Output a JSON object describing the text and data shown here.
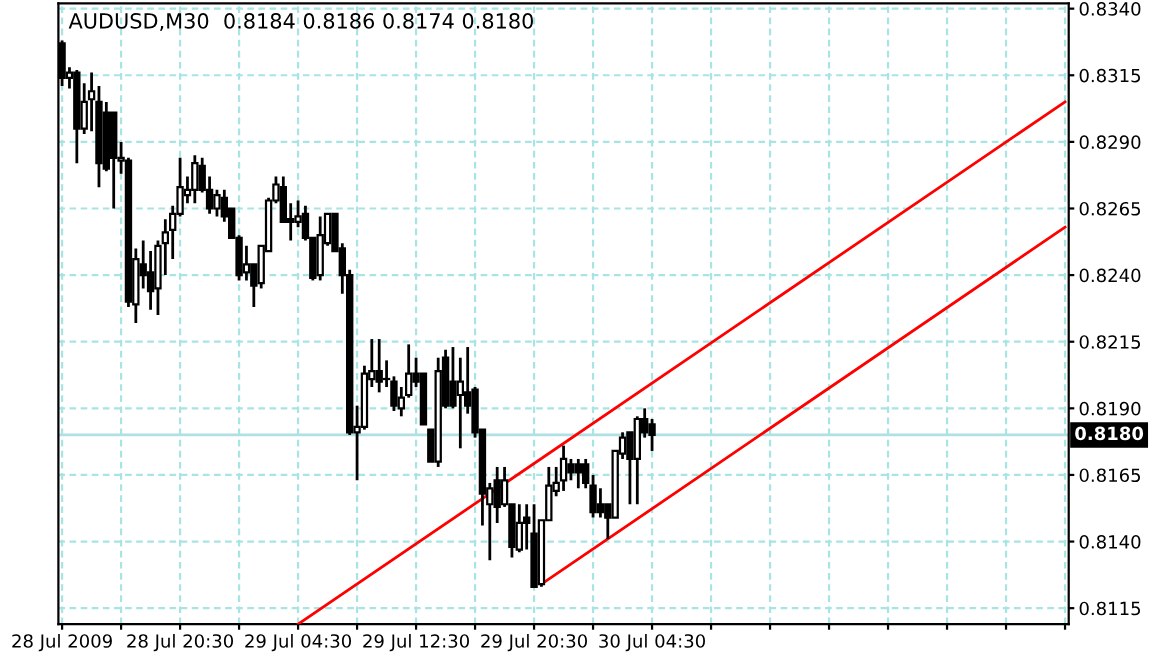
{
  "chart_data": {
    "type": "candlestick",
    "title": "AUDUSD,M30  0.8184 0.8186 0.8174 0.8180",
    "series": [
      {
        "type": "candlestick",
        "x": [
          "2009-07-28T12:30",
          "2009-07-28T13:00",
          "2009-07-28T13:30",
          "2009-07-28T14:00",
          "2009-07-28T14:30",
          "2009-07-28T15:00",
          "2009-07-28T15:30",
          "2009-07-28T16:00",
          "2009-07-28T16:30",
          "2009-07-28T17:00",
          "2009-07-28T17:30",
          "2009-07-28T18:00",
          "2009-07-28T18:30",
          "2009-07-28T19:00",
          "2009-07-28T19:30",
          "2009-07-28T20:00",
          "2009-07-28T20:30",
          "2009-07-28T21:00",
          "2009-07-28T21:30",
          "2009-07-28T22:00",
          "2009-07-28T22:30",
          "2009-07-28T23:00",
          "2009-07-28T23:30",
          "2009-07-29T00:00",
          "2009-07-29T00:30",
          "2009-07-29T01:00",
          "2009-07-29T01:30",
          "2009-07-29T02:00",
          "2009-07-29T02:30",
          "2009-07-29T03:00",
          "2009-07-29T03:30",
          "2009-07-29T04:00",
          "2009-07-29T04:30",
          "2009-07-29T05:00",
          "2009-07-29T05:30",
          "2009-07-29T06:00",
          "2009-07-29T06:30",
          "2009-07-29T07:00",
          "2009-07-29T07:30",
          "2009-07-29T08:00",
          "2009-07-29T08:30",
          "2009-07-29T09:00",
          "2009-07-29T09:30",
          "2009-07-29T10:00",
          "2009-07-29T10:30",
          "2009-07-29T11:00",
          "2009-07-29T11:30",
          "2009-07-29T12:00",
          "2009-07-29T12:30",
          "2009-07-29T13:00",
          "2009-07-29T13:30",
          "2009-07-29T14:00",
          "2009-07-29T14:30",
          "2009-07-29T15:00",
          "2009-07-29T15:30",
          "2009-07-29T16:00",
          "2009-07-29T16:30",
          "2009-07-29T17:00",
          "2009-07-29T17:30",
          "2009-07-29T18:00",
          "2009-07-29T18:30",
          "2009-07-29T19:00",
          "2009-07-29T19:30",
          "2009-07-29T20:00",
          "2009-07-29T20:30",
          "2009-07-29T21:00",
          "2009-07-29T21:30",
          "2009-07-29T22:00",
          "2009-07-29T22:30",
          "2009-07-29T23:00",
          "2009-07-29T23:30",
          "2009-07-30T00:00",
          "2009-07-30T00:30",
          "2009-07-30T01:00",
          "2009-07-30T01:30",
          "2009-07-30T02:00",
          "2009-07-30T02:30",
          "2009-07-30T03:00",
          "2009-07-30T03:30",
          "2009-07-30T04:00",
          "2009-07-30T04:30"
        ],
        "ohlc": [
          [
            0.8327,
            0.8328,
            0.8311,
            0.8314
          ],
          [
            0.8314,
            0.8318,
            0.831,
            0.8316
          ],
          [
            0.8316,
            0.8317,
            0.8282,
            0.8295
          ],
          [
            0.8295,
            0.8312,
            0.8293,
            0.8305
          ],
          [
            0.8306,
            0.8316,
            0.8294,
            0.8309
          ],
          [
            0.8305,
            0.8311,
            0.8273,
            0.8282
          ],
          [
            0.8301,
            0.8305,
            0.8279,
            0.828
          ],
          [
            0.8301,
            0.8301,
            0.8265,
            0.8284
          ],
          [
            0.8283,
            0.829,
            0.8278,
            0.8284
          ],
          [
            0.8283,
            0.8284,
            0.8228,
            0.823
          ],
          [
            0.8229,
            0.825,
            0.8222,
            0.8246
          ],
          [
            0.8244,
            0.8253,
            0.8235,
            0.824
          ],
          [
            0.8241,
            0.8249,
            0.8227,
            0.8234
          ],
          [
            0.8235,
            0.8253,
            0.8225,
            0.8251
          ],
          [
            0.8252,
            0.8261,
            0.824,
            0.8256
          ],
          [
            0.8257,
            0.8266,
            0.8246,
            0.8263
          ],
          [
            0.8263,
            0.8284,
            0.8262,
            0.8273
          ],
          [
            0.827,
            0.8277,
            0.8267,
            0.8272
          ],
          [
            0.8272,
            0.8285,
            0.8267,
            0.8282
          ],
          [
            0.8281,
            0.8284,
            0.8271,
            0.8272
          ],
          [
            0.8272,
            0.8277,
            0.8263,
            0.8265
          ],
          [
            0.8265,
            0.8272,
            0.8262,
            0.827
          ],
          [
            0.8269,
            0.8272,
            0.826,
            0.8262
          ],
          [
            0.8265,
            0.8265,
            0.8254,
            0.8254
          ],
          [
            0.8254,
            0.8255,
            0.8238,
            0.824
          ],
          [
            0.8241,
            0.8251,
            0.8238,
            0.8244
          ],
          [
            0.8244,
            0.8244,
            0.8228,
            0.8236
          ],
          [
            0.8237,
            0.8251,
            0.8235,
            0.8251
          ],
          [
            0.8249,
            0.8269,
            0.8249,
            0.8268
          ],
          [
            0.8268,
            0.8277,
            0.8267,
            0.8274
          ],
          [
            0.8273,
            0.8277,
            0.826,
            0.826
          ],
          [
            0.8261,
            0.8267,
            0.8253,
            0.826
          ],
          [
            0.826,
            0.8268,
            0.8258,
            0.8262
          ],
          [
            0.8263,
            0.8266,
            0.8253,
            0.8254
          ],
          [
            0.8254,
            0.8254,
            0.8238,
            0.8239
          ],
          [
            0.824,
            0.8262,
            0.8238,
            0.8255
          ],
          [
            0.8252,
            0.8263,
            0.8251,
            0.8263
          ],
          [
            0.8263,
            0.8263,
            0.8249,
            0.8249
          ],
          [
            0.825,
            0.8252,
            0.8233,
            0.824
          ],
          [
            0.824,
            0.8242,
            0.818,
            0.8181
          ],
          [
            0.8181,
            0.8191,
            0.8163,
            0.8183
          ],
          [
            0.8183,
            0.8206,
            0.8182,
            0.8203
          ],
          [
            0.8201,
            0.8216,
            0.8198,
            0.8204
          ],
          [
            0.8204,
            0.8216,
            0.8196,
            0.82
          ],
          [
            0.8201,
            0.8208,
            0.8198,
            0.8201
          ],
          [
            0.82,
            0.8202,
            0.8189,
            0.8191
          ],
          [
            0.819,
            0.8198,
            0.8187,
            0.8194
          ],
          [
            0.8195,
            0.8214,
            0.8194,
            0.8203
          ],
          [
            0.8203,
            0.8209,
            0.8198,
            0.82
          ],
          [
            0.8203,
            0.8203,
            0.8184,
            0.8184
          ],
          [
            0.8182,
            0.8182,
            0.817,
            0.817
          ],
          [
            0.817,
            0.8209,
            0.8168,
            0.8204
          ],
          [
            0.8209,
            0.8212,
            0.819,
            0.8191
          ],
          [
            0.82,
            0.8213,
            0.819,
            0.8191
          ],
          [
            0.8195,
            0.8209,
            0.8175,
            0.82
          ],
          [
            0.8196,
            0.8213,
            0.8188,
            0.8191
          ],
          [
            0.8197,
            0.8198,
            0.8179,
            0.8181
          ],
          [
            0.8182,
            0.8182,
            0.8146,
            0.8158
          ],
          [
            0.8154,
            0.8162,
            0.8133,
            0.816
          ],
          [
            0.8163,
            0.8168,
            0.8147,
            0.8153
          ],
          [
            0.8154,
            0.8168,
            0.8153,
            0.8163
          ],
          [
            0.8154,
            0.8154,
            0.8134,
            0.8138
          ],
          [
            0.8137,
            0.8154,
            0.8136,
            0.8147
          ],
          [
            0.8149,
            0.8154,
            0.8137,
            0.8147
          ],
          [
            0.8143,
            0.8154,
            0.8123,
            0.8123
          ],
          [
            0.8124,
            0.8148,
            0.8123,
            0.8148
          ],
          [
            0.8148,
            0.8168,
            0.8148,
            0.8161
          ],
          [
            0.8159,
            0.8168,
            0.8157,
            0.8162
          ],
          [
            0.8163,
            0.8176,
            0.8159,
            0.8171
          ],
          [
            0.8169,
            0.8171,
            0.8163,
            0.8166
          ],
          [
            0.8169,
            0.8171,
            0.816,
            0.8166
          ],
          [
            0.8169,
            0.8171,
            0.816,
            0.8162
          ],
          [
            0.8161,
            0.8165,
            0.8149,
            0.8151
          ],
          [
            0.8154,
            0.816,
            0.8149,
            0.8151
          ],
          [
            0.8154,
            0.8154,
            0.8141,
            0.8149
          ],
          [
            0.8149,
            0.8174,
            0.8149,
            0.8174
          ],
          [
            0.8173,
            0.8181,
            0.8171,
            0.8179
          ],
          [
            0.8181,
            0.8181,
            0.8154,
            0.8171
          ],
          [
            0.8171,
            0.8187,
            0.8154,
            0.8186
          ],
          [
            0.8186,
            0.819,
            0.8179,
            0.8181
          ],
          [
            0.8184,
            0.8186,
            0.8174,
            0.818
          ]
        ]
      },
      {
        "type": "line",
        "color": "#ff0000",
        "x": [
          "2009-07-29T04:30",
          "2009-07-31T08:30"
        ],
        "values": [
          0.8109,
          0.8305
        ]
      },
      {
        "type": "line",
        "color": "#ff0000",
        "x": [
          "2009-07-29T21:00",
          "2009-07-31T08:30"
        ],
        "values": [
          0.8124,
          0.8258
        ]
      }
    ],
    "xlim": [
      "2009-07-28T12:15",
      "2009-07-31T08:45"
    ],
    "xticks": [
      {
        "value": "2009-07-28T12:30",
        "label": "28 Jul 2009"
      },
      {
        "value": "2009-07-28T16:30",
        "label": null
      },
      {
        "value": "2009-07-28T20:30",
        "label": "28 Jul 20:30"
      },
      {
        "value": "2009-07-29T00:30",
        "label": null
      },
      {
        "value": "2009-07-29T04:30",
        "label": "29 Jul 04:30"
      },
      {
        "value": "2009-07-29T08:30",
        "label": null
      },
      {
        "value": "2009-07-29T12:30",
        "label": "29 Jul 12:30"
      },
      {
        "value": "2009-07-29T16:30",
        "label": null
      },
      {
        "value": "2009-07-29T20:30",
        "label": "29 Jul 20:30"
      },
      {
        "value": "2009-07-30T00:30",
        "label": null
      },
      {
        "value": "2009-07-30T04:30",
        "label": "30 Jul 04:30"
      },
      {
        "value": "2009-07-30T08:30",
        "label": null
      },
      {
        "value": "2009-07-30T12:30",
        "label": null
      },
      {
        "value": "2009-07-30T16:30",
        "label": null
      },
      {
        "value": "2009-07-30T20:30",
        "label": null
      },
      {
        "value": "2009-07-31T00:30",
        "label": null
      },
      {
        "value": "2009-07-31T04:30",
        "label": null
      },
      {
        "value": "2009-07-31T08:30",
        "label": null
      }
    ],
    "ylim": [
      0.8109,
      0.8342
    ],
    "yticks": [
      {
        "value": 0.8115,
        "label": "0.8115"
      },
      {
        "value": 0.814,
        "label": "0.8140"
      },
      {
        "value": 0.8165,
        "label": "0.8165"
      },
      {
        "value": 0.819,
        "label": "0.8190"
      },
      {
        "value": 0.8215,
        "label": "0.8215"
      },
      {
        "value": 0.824,
        "label": "0.8240"
      },
      {
        "value": 0.8265,
        "label": "0.8265"
      },
      {
        "value": 0.829,
        "label": "0.8290"
      },
      {
        "value": 0.8315,
        "label": "0.8315"
      },
      {
        "value": 0.834,
        "label": "0.8340"
      }
    ],
    "ref_lines": [
      {
        "axis": "y",
        "value": 0.818,
        "label": "0.8180",
        "color": "#b0e0e6"
      }
    ],
    "grid": true
  }
}
